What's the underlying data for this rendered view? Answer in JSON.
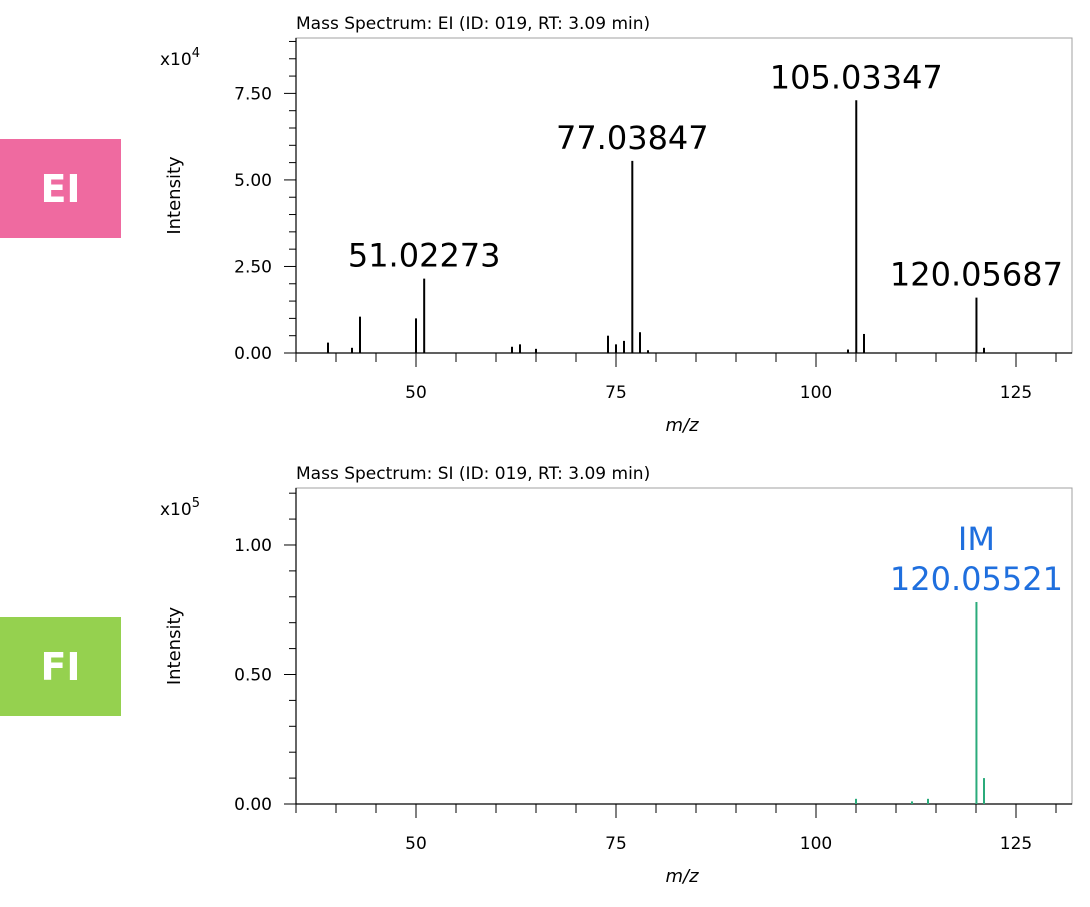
{
  "badges": {
    "ei": {
      "label": "EI",
      "color": "#ef6aa0"
    },
    "fi": {
      "label": "FI",
      "color": "#95d14f"
    }
  },
  "chart_data": [
    {
      "type": "bar",
      "title": "Mass Spectrum: EI (ID: 019, RT: 3.09 min)",
      "xlabel": "m/z",
      "ylabel": "Intensity",
      "scale_label": "x10",
      "scale_exponent": "4",
      "xlim": [
        35,
        132
      ],
      "ylim": [
        0,
        9.1
      ],
      "x_ticks": [
        50,
        75,
        100,
        125
      ],
      "y_ticks": [
        0,
        2.5,
        5.0,
        7.5
      ],
      "y_tick_labels": [
        "0.00",
        "2.50",
        "5.00",
        "7.50"
      ],
      "color": "#000000",
      "label_color": "#000000",
      "peaks": [
        {
          "x": 39.0,
          "y": 0.3
        },
        {
          "x": 42.0,
          "y": 0.15
        },
        {
          "x": 43.0,
          "y": 1.05
        },
        {
          "x": 50.0,
          "y": 1.0
        },
        {
          "x": 51.02273,
          "y": 2.15
        },
        {
          "x": 62.0,
          "y": 0.18
        },
        {
          "x": 63.0,
          "y": 0.25
        },
        {
          "x": 65.0,
          "y": 0.12
        },
        {
          "x": 74.0,
          "y": 0.5
        },
        {
          "x": 75.0,
          "y": 0.25
        },
        {
          "x": 76.0,
          "y": 0.35
        },
        {
          "x": 77.03847,
          "y": 5.55
        },
        {
          "x": 78.0,
          "y": 0.6
        },
        {
          "x": 79.0,
          "y": 0.08
        },
        {
          "x": 104.0,
          "y": 0.1
        },
        {
          "x": 105.03347,
          "y": 7.3
        },
        {
          "x": 106.0,
          "y": 0.55
        },
        {
          "x": 120.05687,
          "y": 1.6
        },
        {
          "x": 121.0,
          "y": 0.15
        }
      ],
      "annotations": [
        {
          "x": 51.02273,
          "y": 2.15,
          "lines": [
            "51.02273"
          ]
        },
        {
          "x": 77.03847,
          "y": 5.55,
          "lines": [
            "77.03847"
          ]
        },
        {
          "x": 105.03347,
          "y": 7.3,
          "lines": [
            "105.03347"
          ]
        },
        {
          "x": 120.05687,
          "y": 1.6,
          "lines": [
            "120.05687"
          ]
        }
      ]
    },
    {
      "type": "bar",
      "title": "Mass Spectrum: SI (ID: 019, RT: 3.09 min)",
      "xlabel": "m/z",
      "ylabel": "Intensity",
      "scale_label": "x10",
      "scale_exponent": "5",
      "xlim": [
        35,
        132
      ],
      "ylim": [
        0,
        1.22
      ],
      "x_ticks": [
        50,
        75,
        100,
        125
      ],
      "y_ticks": [
        0,
        0.5,
        1.0
      ],
      "y_tick_labels": [
        "0.00",
        "0.50",
        "1.00"
      ],
      "color": "#2bab7b",
      "label_color": "#1f6fde",
      "peaks": [
        {
          "x": 105.0,
          "y": 0.02
        },
        {
          "x": 112.0,
          "y": 0.01
        },
        {
          "x": 114.0,
          "y": 0.02
        },
        {
          "x": 120.05521,
          "y": 0.78
        },
        {
          "x": 121.0,
          "y": 0.1
        }
      ],
      "annotations": [
        {
          "x": 120.05521,
          "y": 0.78,
          "lines": [
            "IM",
            "120.05521"
          ]
        }
      ]
    }
  ]
}
